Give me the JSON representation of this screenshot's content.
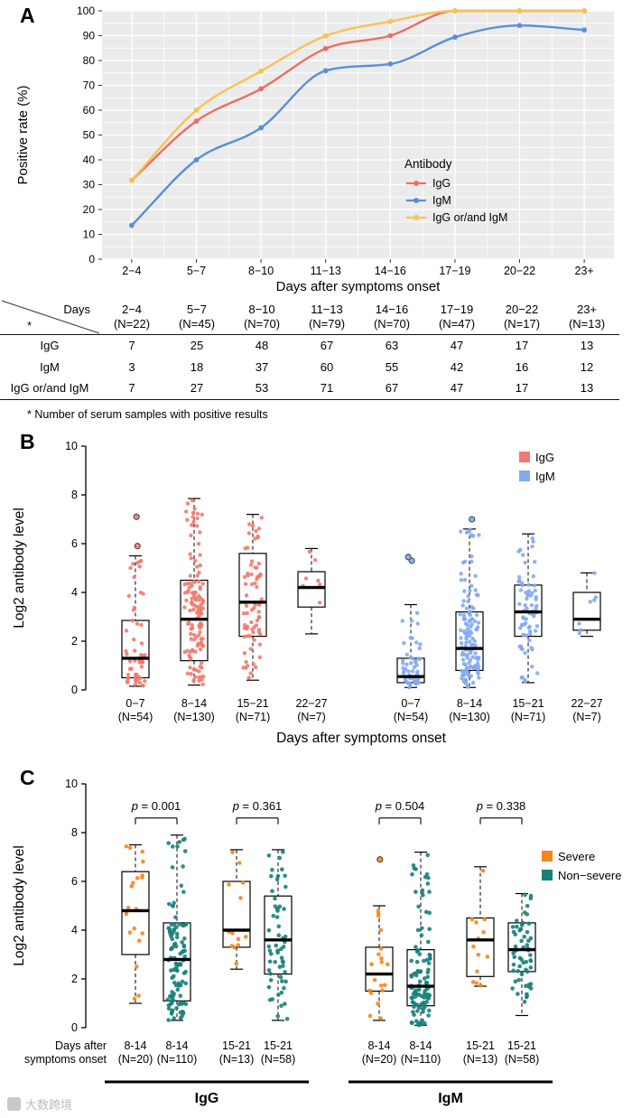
{
  "panels": {
    "a": "A",
    "b": "B",
    "c": "C"
  },
  "watermark": {
    "text": "大数跨境"
  },
  "chart_data": [
    {
      "id": "panel-a-line",
      "type": "line",
      "panel": "A",
      "xlabel": "Days after symptoms onset",
      "ylabel": "Positive rate (%)",
      "ylim": [
        0,
        100
      ],
      "yticks": [
        0,
        10,
        20,
        30,
        40,
        50,
        60,
        70,
        80,
        90,
        100
      ],
      "categories": [
        "2−4",
        "5−7",
        "8−10",
        "11−13",
        "14−16",
        "17−19",
        "20−22",
        "23+"
      ],
      "legend_title": "Antibody",
      "legend_position": "inside-right",
      "grid": true,
      "plot_bg": "#ebebeb",
      "grid_color": "#ffffff",
      "series": [
        {
          "name": "IgG",
          "color": "#ec6e61",
          "values": [
            31.8,
            55.6,
            68.6,
            84.8,
            90.0,
            100,
            100,
            100
          ]
        },
        {
          "name": "IgM",
          "color": "#5a8fd8",
          "values": [
            13.6,
            40.0,
            52.9,
            75.9,
            78.6,
            89.4,
            94.1,
            92.3
          ]
        },
        {
          "name": "IgG or/and IgM",
          "color": "#f8c254",
          "values": [
            31.8,
            60.0,
            75.7,
            89.9,
            95.7,
            100,
            100,
            100
          ]
        }
      ]
    },
    {
      "id": "panel-a-table",
      "type": "table",
      "corner": {
        "top": "Days",
        "bottom": "*"
      },
      "columns": [
        [
          "2−4",
          "(N=22)"
        ],
        [
          "5−7",
          "(N=45)"
        ],
        [
          "8−10",
          "(N=70)"
        ],
        [
          "11−13",
          "(N=79)"
        ],
        [
          "14−16",
          "(N=70)"
        ],
        [
          "17−19",
          "(N=47)"
        ],
        [
          "20−22",
          "(N=17)"
        ],
        [
          "23+",
          "(N=13)"
        ]
      ],
      "rows": [
        {
          "label": "IgG",
          "values": [
            7,
            25,
            48,
            67,
            63,
            47,
            17,
            13
          ]
        },
        {
          "label": "IgM",
          "values": [
            3,
            18,
            37,
            60,
            55,
            42,
            16,
            12
          ]
        },
        {
          "label": "IgG or/and IgM",
          "values": [
            7,
            27,
            53,
            71,
            67,
            47,
            17,
            13
          ]
        }
      ],
      "footnote": "* Number of serum samples with positive results"
    },
    {
      "id": "panel-b-box",
      "type": "boxplot",
      "panel": "B",
      "ylabel": "Log2 antibody level",
      "xlabel": "Days after symptoms onset",
      "ylim": [
        0,
        10
      ],
      "yticks": [
        0,
        2,
        4,
        6,
        8,
        10
      ],
      "legend": [
        {
          "name": "IgG",
          "color": "#ef7b6e"
        },
        {
          "name": "IgM",
          "color": "#84a9ee"
        }
      ],
      "boxes": [
        {
          "group": "IgG",
          "color": "#ef7b6e",
          "label1": "0−7",
          "label2": "(N=54)",
          "n": 54,
          "lo": 0.15,
          "q1": 0.5,
          "med": 1.3,
          "q3": 2.85,
          "hi": 5.5,
          "outliers": [
            5.9,
            7.1
          ]
        },
        {
          "group": "IgG",
          "color": "#ef7b6e",
          "label1": "8−14",
          "label2": "(N=130)",
          "n": 130,
          "lo": 0.2,
          "q1": 1.2,
          "med": 2.9,
          "q3": 4.5,
          "hi": 7.85,
          "outliers": []
        },
        {
          "group": "IgG",
          "color": "#ef7b6e",
          "label1": "15−21",
          "label2": "(N=71)",
          "n": 71,
          "lo": 0.4,
          "q1": 2.2,
          "med": 3.6,
          "q3": 5.6,
          "hi": 7.2,
          "outliers": []
        },
        {
          "group": "IgG",
          "color": "#ef7b6e",
          "label1": "22−27",
          "label2": "(N=7)",
          "n": 7,
          "lo": 2.3,
          "q1": 3.4,
          "med": 4.2,
          "q3": 4.85,
          "hi": 5.8,
          "outliers": []
        },
        {
          "group": "IgM",
          "color": "#84a9ee",
          "label1": "0−7",
          "label2": "(N=54)",
          "n": 54,
          "lo": 0.1,
          "q1": 0.3,
          "med": 0.55,
          "q3": 1.3,
          "hi": 3.5,
          "outliers": [
            5.3,
            5.45
          ]
        },
        {
          "group": "IgM",
          "color": "#84a9ee",
          "label1": "8−14",
          "label2": "(N=130)",
          "n": 130,
          "lo": 0.1,
          "q1": 0.8,
          "med": 1.7,
          "q3": 3.2,
          "hi": 6.6,
          "outliers": [
            7.0
          ]
        },
        {
          "group": "IgM",
          "color": "#84a9ee",
          "label1": "15−21",
          "label2": "(N=71)",
          "n": 71,
          "lo": 0.3,
          "q1": 2.2,
          "med": 3.2,
          "q3": 4.3,
          "hi": 6.4,
          "outliers": []
        },
        {
          "group": "IgM",
          "color": "#84a9ee",
          "label1": "22−27",
          "label2": "(N=7)",
          "n": 7,
          "lo": 2.2,
          "q1": 2.45,
          "med": 2.9,
          "q3": 4.0,
          "hi": 4.8,
          "outliers": []
        }
      ]
    },
    {
      "id": "panel-c-box",
      "type": "boxplot",
      "panel": "C",
      "ylabel": "Log2 antibody level",
      "xlabel_side": [
        "Days after",
        "symptoms onset"
      ],
      "ylim": [
        0,
        10
      ],
      "yticks": [
        0,
        2,
        4,
        6,
        8,
        10
      ],
      "bracket_level": 8.6,
      "legend": [
        {
          "name": "Severe",
          "color": "#f5861c"
        },
        {
          "name": "Non−severe",
          "color": "#17817a"
        }
      ],
      "pvalues": [
        {
          "pair": [
            0,
            1
          ],
          "text": "p = 0.001"
        },
        {
          "pair": [
            2,
            3
          ],
          "text": "p = 0.361"
        },
        {
          "pair": [
            4,
            5
          ],
          "text": "p = 0.504"
        },
        {
          "pair": [
            6,
            7
          ],
          "text": "p = 0.338"
        }
      ],
      "group_rules": [
        {
          "label": "IgG",
          "from": 0,
          "to": 3
        },
        {
          "label": "IgM",
          "from": 4,
          "to": 7
        }
      ],
      "boxes": [
        {
          "group": "IgG",
          "severity": "Severe",
          "color": "#f5861c",
          "label1": "8-14",
          "label2": "(N=20)",
          "n": 20,
          "lo": 1.0,
          "q1": 3.0,
          "med": 4.8,
          "q3": 6.4,
          "hi": 7.5,
          "outliers": []
        },
        {
          "group": "IgG",
          "severity": "Non-severe",
          "color": "#17817a",
          "label1": "8-14",
          "label2": "(N=110)",
          "n": 110,
          "lo": 0.3,
          "q1": 1.1,
          "med": 2.8,
          "q3": 4.3,
          "hi": 7.9,
          "outliers": []
        },
        {
          "group": "IgG",
          "severity": "Severe",
          "color": "#f5861c",
          "label1": "15-21",
          "label2": "(N=13)",
          "n": 13,
          "lo": 2.4,
          "q1": 3.3,
          "med": 4.0,
          "q3": 6.0,
          "hi": 7.3,
          "outliers": []
        },
        {
          "group": "IgG",
          "severity": "Non-severe",
          "color": "#17817a",
          "label1": "15-21",
          "label2": "(N=58)",
          "n": 58,
          "lo": 0.3,
          "q1": 2.2,
          "med": 3.6,
          "q3": 5.4,
          "hi": 7.3,
          "outliers": []
        },
        {
          "group": "IgM",
          "severity": "Severe",
          "color": "#f5861c",
          "label1": "8-14",
          "label2": "(N=20)",
          "n": 20,
          "lo": 0.3,
          "q1": 1.5,
          "med": 2.2,
          "q3": 3.3,
          "hi": 5.0,
          "outliers": [
            6.9
          ]
        },
        {
          "group": "IgM",
          "severity": "Non-severe",
          "color": "#17817a",
          "label1": "8-14",
          "label2": "(N=110)",
          "n": 110,
          "lo": 0.1,
          "q1": 0.9,
          "med": 1.7,
          "q3": 3.2,
          "hi": 7.2,
          "outliers": []
        },
        {
          "group": "IgM",
          "severity": "Severe",
          "color": "#f5861c",
          "label1": "15-21",
          "label2": "(N=13)",
          "n": 13,
          "lo": 1.7,
          "q1": 2.1,
          "med": 3.6,
          "q3": 4.5,
          "hi": 6.6,
          "outliers": []
        },
        {
          "group": "IgM",
          "severity": "Non-severe",
          "color": "#17817a",
          "label1": "15-21",
          "label2": "(N=58)",
          "n": 58,
          "lo": 0.5,
          "q1": 2.3,
          "med": 3.2,
          "q3": 4.3,
          "hi": 5.5,
          "outliers": []
        }
      ]
    }
  ]
}
